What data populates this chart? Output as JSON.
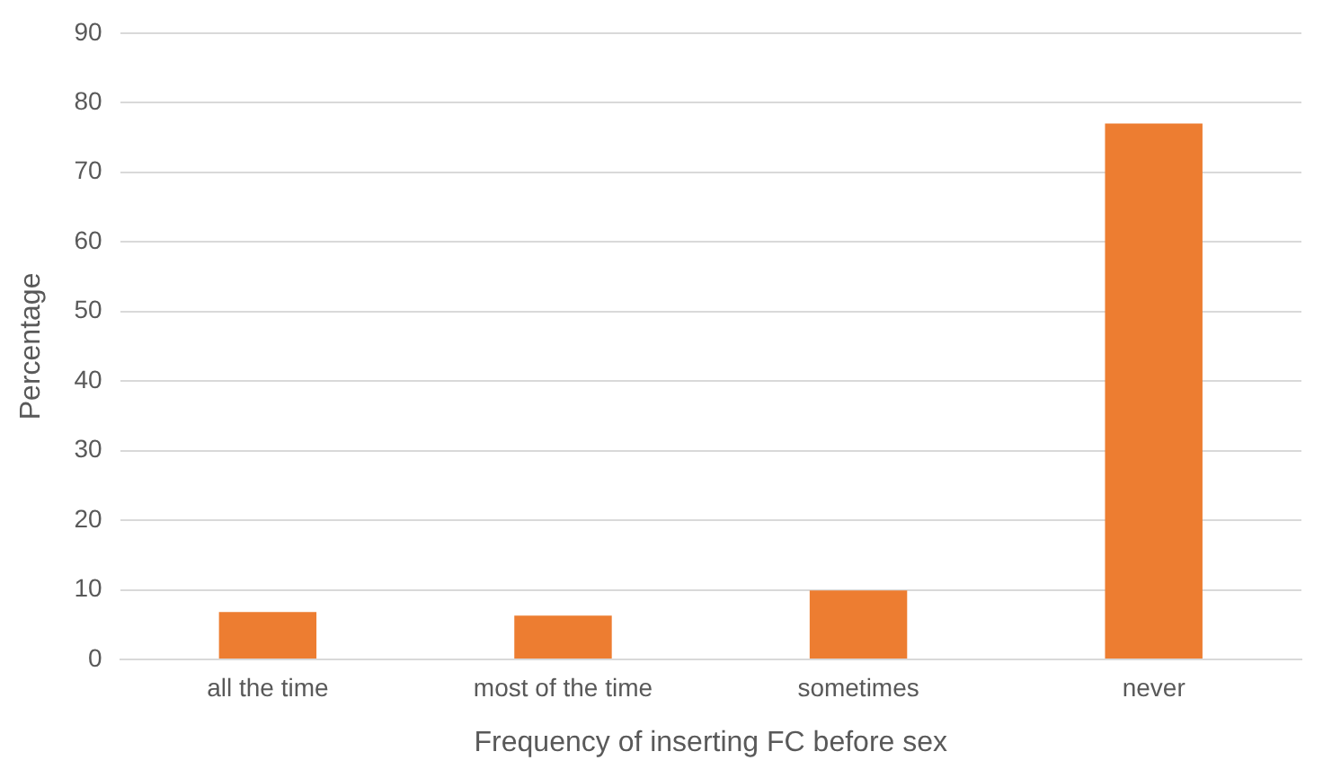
{
  "chart_data": {
    "type": "bar",
    "xlabel": "Frequency of inserting FC before sex",
    "ylabel": "Percentage",
    "categories": [
      "all the time",
      "most of the time",
      "sometimes",
      "never"
    ],
    "values": [
      6.8,
      6.3,
      9.9,
      77
    ],
    "color": "#ed7d31",
    "ylim": [
      0,
      90
    ],
    "yticks": [
      0,
      10,
      20,
      30,
      40,
      50,
      60,
      70,
      80,
      90
    ],
    "grid": "y",
    "legend": false
  }
}
